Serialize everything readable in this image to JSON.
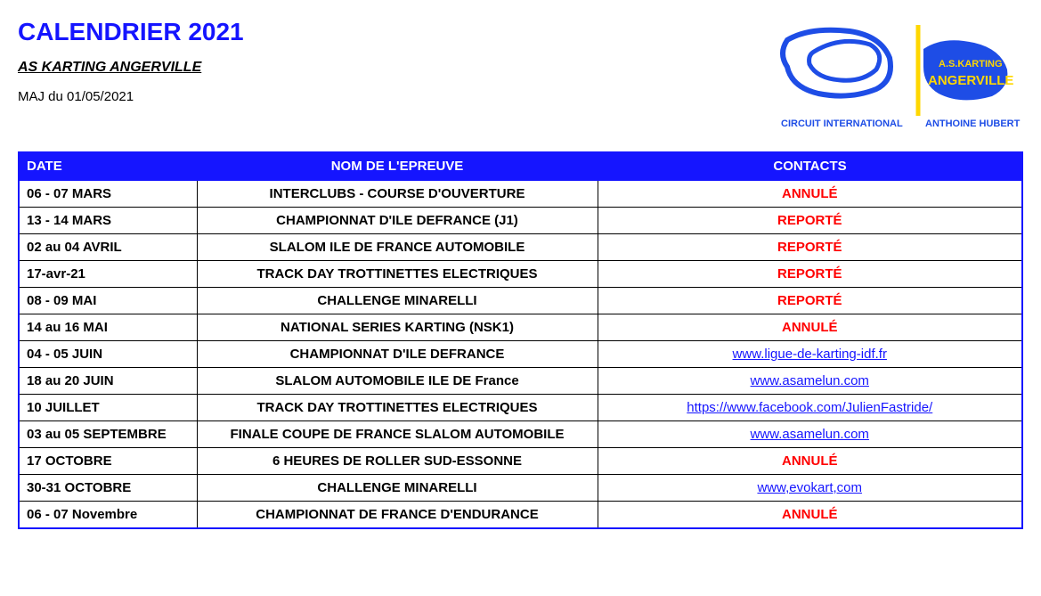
{
  "header": {
    "title": "CALENDRIER 2021",
    "subtitle": "AS KARTING ANGERVILLE",
    "update_date": "MAJ du 01/05/2021"
  },
  "logo": {
    "text_top": "A.S.KARTING",
    "text_main": "ANGERVILLE",
    "text_bottom_left": "CIRCUIT INTERNATIONAL",
    "text_bottom_right": "ANTHOINE HUBERT",
    "primary_color": "#1e4de6",
    "accent_color": "#ffd700"
  },
  "table": {
    "headers": {
      "date": "DATE",
      "event": "NOM DE L'EPREUVE",
      "contacts": "CONTACTS"
    },
    "header_bg_color": "#1515ff",
    "header_text_color": "#ffffff",
    "border_color": "#000000",
    "outer_border_color": "#1515ff",
    "status_colors": {
      "cancelled": "#ff0000",
      "postponed": "#ff0000",
      "link": "#1515ff"
    },
    "rows": [
      {
        "date": "06 - 07 MARS",
        "event": "INTERCLUBS - COURSE D'OUVERTURE",
        "contact_type": "cancelled",
        "contact": "ANNULÉ"
      },
      {
        "date": "13 - 14 MARS",
        "event": "CHAMPIONNAT D'ILE DEFRANCE (J1)",
        "contact_type": "postponed",
        "contact": "REPORTÉ"
      },
      {
        "date": "02 au 04 AVRIL",
        "event": "SLALOM ILE DE FRANCE AUTOMOBILE",
        "contact_type": "postponed",
        "contact": "REPORTÉ"
      },
      {
        "date": "17-avr-21",
        "event": "TRACK DAY TROTTINETTES ELECTRIQUES",
        "contact_type": "postponed",
        "contact": "REPORTÉ"
      },
      {
        "date": "08 - 09 MAI",
        "event": "CHALLENGE MINARELLI",
        "contact_type": "postponed",
        "contact": "REPORTÉ"
      },
      {
        "date": "14 au 16 MAI",
        "event": "NATIONAL SERIES KARTING (NSK1)",
        "contact_type": "cancelled",
        "contact": "ANNULÉ"
      },
      {
        "date": "04 - 05 JUIN",
        "event": "CHAMPIONNAT D'ILE DEFRANCE",
        "contact_type": "link",
        "contact": "www.ligue-de-karting-idf.fr"
      },
      {
        "date": "18 au 20 JUIN",
        "event": "SLALOM AUTOMOBILE ILE DE France",
        "contact_type": "link",
        "contact": "www.asamelun.com"
      },
      {
        "date": "10 JUILLET",
        "event": "TRACK DAY TROTTINETTES ELECTRIQUES",
        "contact_type": "link",
        "contact": "https://www.facebook.com/JulienFastride/"
      },
      {
        "date": "03 au 05 SEPTEMBRE",
        "event": "FINALE COUPE DE FRANCE SLALOM AUTOMOBILE",
        "contact_type": "link",
        "contact": "www.asamelun.com"
      },
      {
        "date": "17 OCTOBRE",
        "event": "6 HEURES DE ROLLER SUD-ESSONNE",
        "contact_type": "cancelled",
        "contact": "ANNULÉ"
      },
      {
        "date": "30-31 OCTOBRE",
        "event": "CHALLENGE MINARELLI",
        "contact_type": "link",
        "contact": "www,evokart,com"
      },
      {
        "date": "06 - 07 Novembre",
        "event": "CHAMPIONNAT DE FRANCE D'ENDURANCE",
        "contact_type": "cancelled",
        "contact": "ANNULÉ"
      }
    ]
  }
}
